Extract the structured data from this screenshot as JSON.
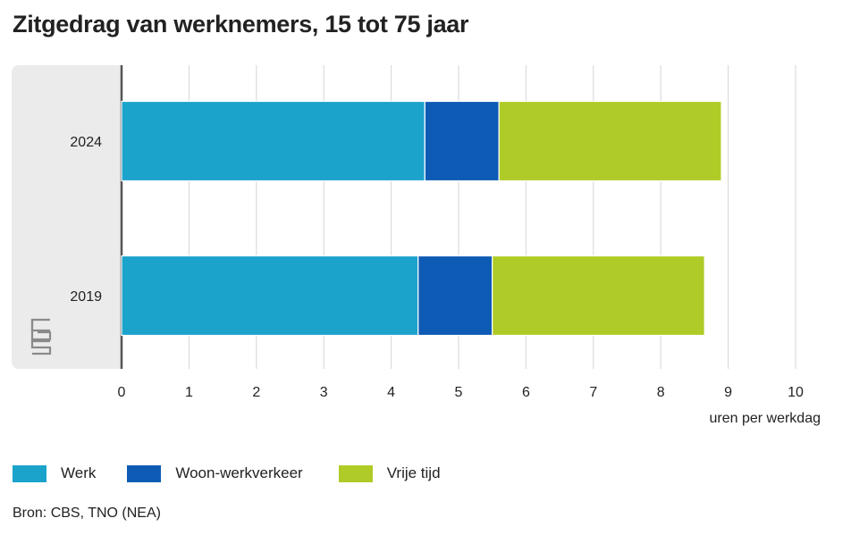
{
  "title": "Zitgedrag van werknemers, 15 tot 75 jaar",
  "source": "Bron: CBS, TNO (NEA)",
  "logo_text": "cbs",
  "colors": {
    "werk": "#1ba3cc",
    "woon_werkverkeer": "#0e5bb5",
    "vrije_tijd": "#afcb27",
    "panel": "#ebebeb",
    "grid": "#d6d6d6",
    "axis": "#555555"
  },
  "chart_data": {
    "type": "bar",
    "orientation": "horizontal",
    "stacked": true,
    "title": "Zitgedrag van werknemers, 15 tot 75 jaar",
    "xlabel": "uren per werkdag",
    "ylabel": "",
    "xlim": [
      0,
      10
    ],
    "xticks": [
      "0",
      "1",
      "2",
      "3",
      "4",
      "5",
      "6",
      "7",
      "8",
      "9",
      "10"
    ],
    "grid": true,
    "legend_position": "bottom-left",
    "categories": [
      "2024",
      "2019"
    ],
    "series": [
      {
        "name": "Werk",
        "color": "#1ba3cc",
        "values": [
          4.5,
          4.4
        ]
      },
      {
        "name": "Woon-werkverkeer",
        "color": "#0e5bb5",
        "values": [
          1.1,
          1.1
        ]
      },
      {
        "name": "Vrije tijd",
        "color": "#afcb27",
        "values": [
          3.3,
          3.15
        ]
      }
    ]
  }
}
